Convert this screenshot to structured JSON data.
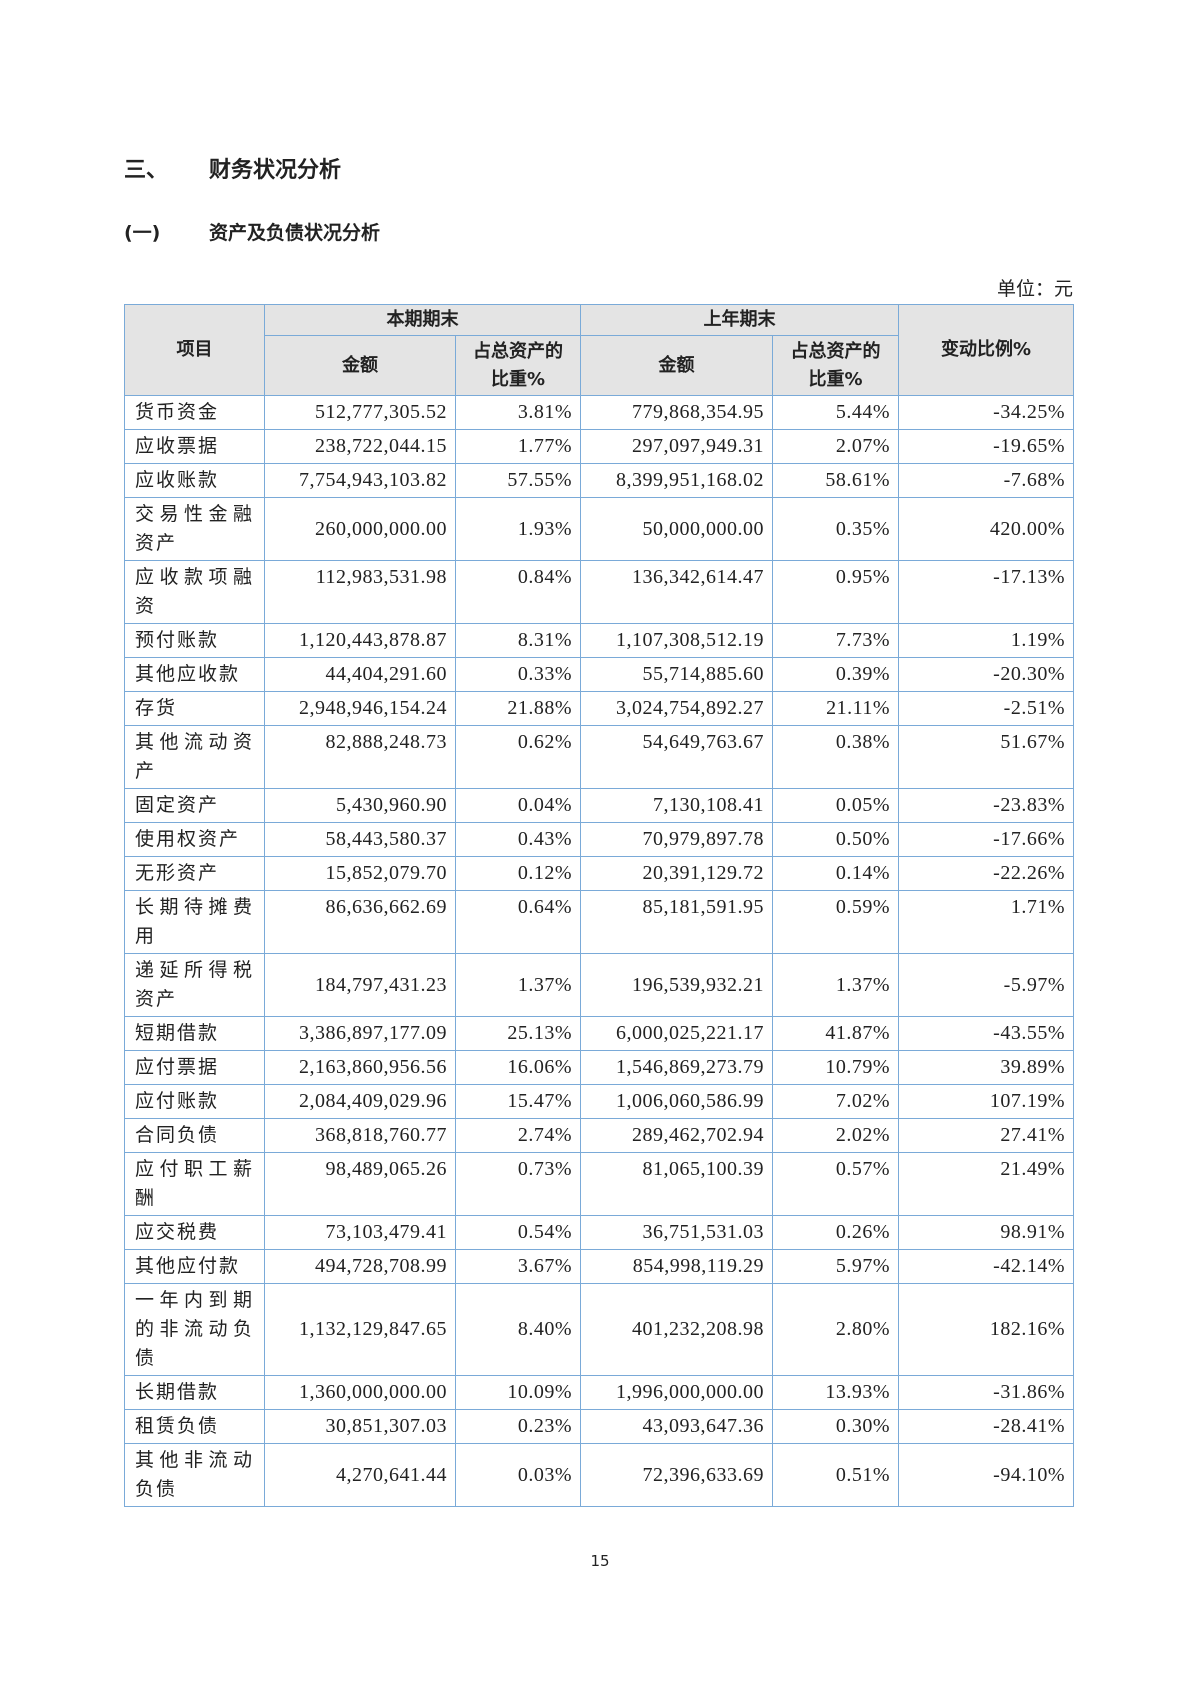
{
  "section": {
    "number": "三、",
    "title": "财务状况分析"
  },
  "subsection": {
    "number": "(一)",
    "title": "资产及负债状况分析"
  },
  "unit": "单位：元",
  "table": {
    "headers": {
      "item": "项目",
      "current_period": "本期期末",
      "prior_year": "上年期末",
      "amount": "金额",
      "ratio": "占总资产的比重%",
      "change": "变动比例%"
    },
    "rows": [
      {
        "item": "货币资金",
        "cur_amount": "512,777,305.52",
        "cur_ratio": "3.81%",
        "prev_amount": "779,868,354.95",
        "prev_ratio": "5.44%",
        "change": "-34.25%"
      },
      {
        "item": "应收票据",
        "cur_amount": "238,722,044.15",
        "cur_ratio": "1.77%",
        "prev_amount": "297,097,949.31",
        "prev_ratio": "2.07%",
        "change": "-19.65%"
      },
      {
        "item": "应收账款",
        "cur_amount": "7,754,943,103.82",
        "cur_ratio": "57.55%",
        "prev_amount": "8,399,951,168.02",
        "prev_ratio": "58.61%",
        "change": "-7.68%"
      },
      {
        "item": "交易性金融资产",
        "cur_amount": "260,000,000.00",
        "cur_ratio": "1.93%",
        "prev_amount": "50,000,000.00",
        "prev_ratio": "0.35%",
        "change": "420.00%"
      },
      {
        "item": "应收款项融资",
        "cur_amount": "112,983,531.98",
        "cur_ratio": "0.84%",
        "prev_amount": "136,342,614.47",
        "prev_ratio": "0.95%",
        "change": "-17.13%"
      },
      {
        "item": "预付账款",
        "cur_amount": "1,120,443,878.87",
        "cur_ratio": "8.31%",
        "prev_amount": "1,107,308,512.19",
        "prev_ratio": "7.73%",
        "change": "1.19%"
      },
      {
        "item": "其他应收款",
        "cur_amount": "44,404,291.60",
        "cur_ratio": "0.33%",
        "prev_amount": "55,714,885.60",
        "prev_ratio": "0.39%",
        "change": "-20.30%"
      },
      {
        "item": "存货",
        "cur_amount": "2,948,946,154.24",
        "cur_ratio": "21.88%",
        "prev_amount": "3,024,754,892.27",
        "prev_ratio": "21.11%",
        "change": "-2.51%"
      },
      {
        "item": "其他流动资产",
        "cur_amount": "82,888,248.73",
        "cur_ratio": "0.62%",
        "prev_amount": "54,649,763.67",
        "prev_ratio": "0.38%",
        "change": "51.67%"
      },
      {
        "item": "固定资产",
        "cur_amount": "5,430,960.90",
        "cur_ratio": "0.04%",
        "prev_amount": "7,130,108.41",
        "prev_ratio": "0.05%",
        "change": "-23.83%"
      },
      {
        "item": "使用权资产",
        "cur_amount": "58,443,580.37",
        "cur_ratio": "0.43%",
        "prev_amount": "70,979,897.78",
        "prev_ratio": "0.50%",
        "change": "-17.66%"
      },
      {
        "item": "无形资产",
        "cur_amount": "15,852,079.70",
        "cur_ratio": "0.12%",
        "prev_amount": "20,391,129.72",
        "prev_ratio": "0.14%",
        "change": "-22.26%"
      },
      {
        "item": "长期待摊费用",
        "cur_amount": "86,636,662.69",
        "cur_ratio": "0.64%",
        "prev_amount": "85,181,591.95",
        "prev_ratio": "0.59%",
        "change": "1.71%"
      },
      {
        "item": "递延所得税资产",
        "cur_amount": "184,797,431.23",
        "cur_ratio": "1.37%",
        "prev_amount": "196,539,932.21",
        "prev_ratio": "1.37%",
        "change": "-5.97%"
      },
      {
        "item": "短期借款",
        "cur_amount": "3,386,897,177.09",
        "cur_ratio": "25.13%",
        "prev_amount": "6,000,025,221.17",
        "prev_ratio": "41.87%",
        "change": "-43.55%"
      },
      {
        "item": "应付票据",
        "cur_amount": "2,163,860,956.56",
        "cur_ratio": "16.06%",
        "prev_amount": "1,546,869,273.79",
        "prev_ratio": "10.79%",
        "change": "39.89%"
      },
      {
        "item": "应付账款",
        "cur_amount": "2,084,409,029.96",
        "cur_ratio": "15.47%",
        "prev_amount": "1,006,060,586.99",
        "prev_ratio": "7.02%",
        "change": "107.19%"
      },
      {
        "item": "合同负债",
        "cur_amount": "368,818,760.77",
        "cur_ratio": "2.74%",
        "prev_amount": "289,462,702.94",
        "prev_ratio": "2.02%",
        "change": "27.41%"
      },
      {
        "item": "应付职工薪酬",
        "cur_amount": "98,489,065.26",
        "cur_ratio": "0.73%",
        "prev_amount": "81,065,100.39",
        "prev_ratio": "0.57%",
        "change": "21.49%"
      },
      {
        "item": "应交税费",
        "cur_amount": "73,103,479.41",
        "cur_ratio": "0.54%",
        "prev_amount": "36,751,531.03",
        "prev_ratio": "0.26%",
        "change": "98.91%"
      },
      {
        "item": "其他应付款",
        "cur_amount": "494,728,708.99",
        "cur_ratio": "3.67%",
        "prev_amount": "854,998,119.29",
        "prev_ratio": "5.97%",
        "change": "-42.14%"
      },
      {
        "item": "一年内到期的非流动负债",
        "cur_amount": "1,132,129,847.65",
        "cur_ratio": "8.40%",
        "prev_amount": "401,232,208.98",
        "prev_ratio": "2.80%",
        "change": "182.16%"
      },
      {
        "item": "长期借款",
        "cur_amount": "1,360,000,000.00",
        "cur_ratio": "10.09%",
        "prev_amount": "1,996,000,000.00",
        "prev_ratio": "13.93%",
        "change": "-31.86%"
      },
      {
        "item": "租赁负债",
        "cur_amount": "30,851,307.03",
        "cur_ratio": "0.23%",
        "prev_amount": "43,093,647.36",
        "prev_ratio": "0.30%",
        "change": "-28.41%"
      },
      {
        "item": "其他非流动负债",
        "cur_amount": "4,270,641.44",
        "cur_ratio": "0.03%",
        "prev_amount": "72,396,633.69",
        "prev_ratio": "0.51%",
        "change": "-94.10%"
      }
    ]
  },
  "page_number": "15"
}
